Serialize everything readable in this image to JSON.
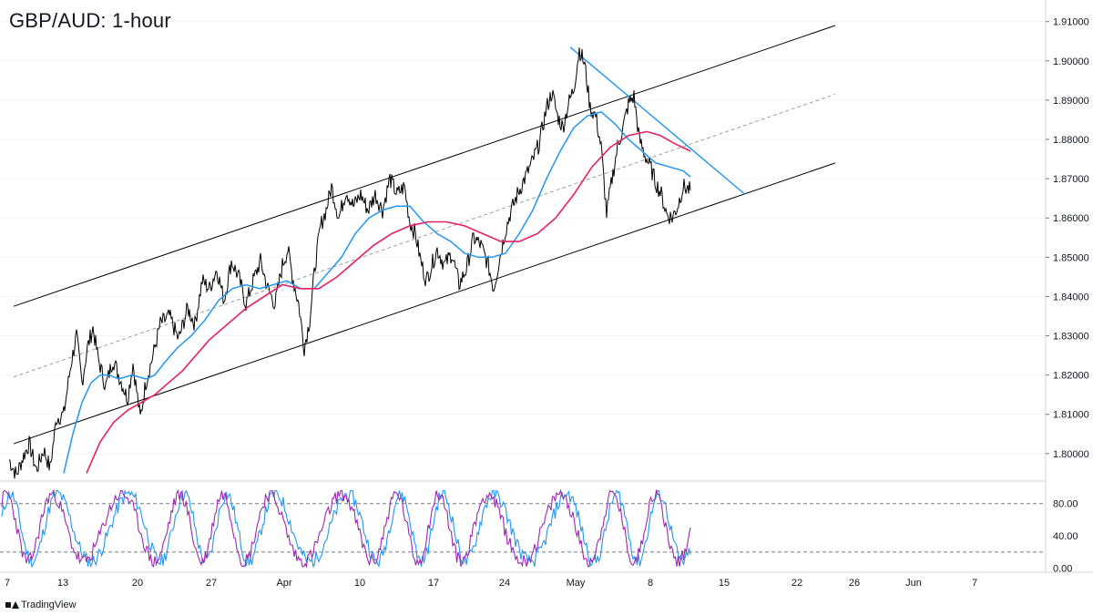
{
  "title": "GBP/AUD: 1-hour",
  "footer": {
    "brand": "TradingView",
    "logo_icon": "tradingview-logo-icon"
  },
  "colors": {
    "price": "#000000",
    "ema_fast": "#2196f3",
    "ema_slow": "#e91e63",
    "channel": "#000000",
    "midline": "#9e9e9e",
    "trendline": "#2196f3",
    "stoch_k": "#2196f3",
    "stoch_d": "#9c27b0",
    "grid": "#e0e3eb"
  },
  "chart_data": [
    {
      "type": "line",
      "title": "GBP/AUD: 1-hour",
      "xlabel": "",
      "ylabel": "",
      "ylim": [
        1.793,
        1.9155
      ],
      "yticks": [
        "1.80000",
        "1.81000",
        "1.82000",
        "1.83000",
        "1.84000",
        "1.85000",
        "1.86000",
        "1.87000",
        "1.88000",
        "1.89000",
        "1.90000",
        "1.91000"
      ],
      "xticks": [
        "7",
        "13",
        "20",
        "27",
        "Apr",
        "10",
        "17",
        "24",
        "May",
        "8",
        "15",
        "22",
        "26",
        "Jun",
        "7"
      ],
      "series": [
        {
          "values": [
            [
              0,
              1.7985
            ],
            [
              8,
              1.7945
            ],
            [
              16,
              1.7995
            ],
            [
              22,
              1.8025
            ],
            [
              30,
              1.7958
            ],
            [
              38,
              1.801
            ],
            [
              45,
              1.7962
            ],
            [
              52,
              1.809
            ],
            [
              60,
              1.81
            ],
            [
              68,
              1.823
            ],
            [
              74,
              1.83
            ],
            [
              80,
              1.818
            ],
            [
              86,
              1.827
            ],
            [
              92,
              1.832
            ],
            [
              98,
              1.824
            ],
            [
              106,
              1.817
            ],
            [
              114,
              1.824
            ],
            [
              122,
              1.819
            ],
            [
              130,
              1.814
            ],
            [
              136,
              1.823
            ],
            [
              144,
              1.809
            ],
            [
              150,
              1.818
            ],
            [
              158,
              1.825
            ],
            [
              166,
              1.833
            ],
            [
              176,
              1.835
            ],
            [
              186,
              1.829
            ],
            [
              196,
              1.837
            ],
            [
              204,
              1.833
            ],
            [
              212,
              1.844
            ],
            [
              220,
              1.842
            ],
            [
              228,
              1.847
            ],
            [
              236,
              1.839
            ],
            [
              244,
              1.849
            ],
            [
              252,
              1.845
            ],
            [
              260,
              1.838
            ],
            [
              268,
              1.844
            ],
            [
              276,
              1.849
            ],
            [
              284,
              1.842
            ],
            [
              292,
              1.838
            ],
            [
              300,
              1.848
            ],
            [
              306,
              1.852
            ],
            [
              312,
              1.844
            ],
            [
              318,
              1.838
            ],
            [
              324,
              1.827
            ],
            [
              330,
              1.834
            ],
            [
              336,
              1.848
            ],
            [
              342,
              1.858
            ],
            [
              348,
              1.862
            ],
            [
              354,
              1.868
            ],
            [
              362,
              1.86
            ],
            [
              370,
              1.867
            ],
            [
              378,
              1.863
            ],
            [
              386,
              1.866
            ],
            [
              394,
              1.862
            ],
            [
              402,
              1.866
            ],
            [
              410,
              1.862
            ],
            [
              418,
              1.87
            ],
            [
              426,
              1.866
            ],
            [
              434,
              1.868
            ],
            [
              440,
              1.859
            ],
            [
              446,
              1.856
            ],
            [
              452,
              1.849
            ],
            [
              458,
              1.844
            ],
            [
              464,
              1.848
            ],
            [
              470,
              1.852
            ],
            [
              478,
              1.848
            ],
            [
              486,
              1.851
            ],
            [
              494,
              1.843
            ],
            [
              502,
              1.847
            ],
            [
              510,
              1.855
            ],
            [
              518,
              1.853
            ],
            [
              526,
              1.848
            ],
            [
              532,
              1.842
            ],
            [
              538,
              1.849
            ],
            [
              544,
              1.856
            ],
            [
              550,
              1.861
            ],
            [
              558,
              1.866
            ],
            [
              566,
              1.87
            ],
            [
              574,
              1.874
            ],
            [
              582,
              1.879
            ],
            [
              590,
              1.888
            ],
            [
              596,
              1.892
            ],
            [
              602,
              1.886
            ],
            [
              608,
              1.883
            ],
            [
              614,
              1.889
            ],
            [
              620,
              1.893
            ],
            [
              626,
              1.903
            ],
            [
              632,
              1.899
            ],
            [
              638,
              1.888
            ],
            [
              644,
              1.886
            ],
            [
              650,
              1.878
            ],
            [
              656,
              1.861
            ],
            [
              662,
              1.87
            ],
            [
              668,
              1.878
            ],
            [
              674,
              1.883
            ],
            [
              680,
              1.889
            ],
            [
              686,
              1.891
            ],
            [
              692,
              1.88
            ],
            [
              698,
              1.876
            ],
            [
              704,
              1.873
            ],
            [
              710,
              1.869
            ],
            [
              716,
              1.866
            ],
            [
              722,
              1.861
            ],
            [
              728,
              1.86
            ],
            [
              734,
              1.863
            ],
            [
              740,
              1.868
            ],
            [
              748,
              1.867
            ]
          ]
        },
        {
          "values": [
            [
              60,
              1.795
            ],
            [
              70,
              1.805
            ],
            [
              80,
              1.813
            ],
            [
              90,
              1.818
            ],
            [
              100,
              1.82
            ],
            [
              110,
              1.82
            ],
            [
              120,
              1.819
            ],
            [
              135,
              1.82
            ],
            [
              150,
              1.819
            ],
            [
              160,
              1.82
            ],
            [
              170,
              1.823
            ],
            [
              185,
              1.827
            ],
            [
              200,
              1.83
            ],
            [
              215,
              1.834
            ],
            [
              230,
              1.839
            ],
            [
              245,
              1.842
            ],
            [
              260,
              1.843
            ],
            [
              275,
              1.842
            ],
            [
              290,
              1.843
            ],
            [
              305,
              1.844
            ],
            [
              320,
              1.842
            ],
            [
              335,
              1.842
            ],
            [
              350,
              1.846
            ],
            [
              365,
              1.85
            ],
            [
              380,
              1.856
            ],
            [
              395,
              1.86
            ],
            [
              410,
              1.862
            ],
            [
              425,
              1.863
            ],
            [
              440,
              1.863
            ],
            [
              455,
              1.859
            ],
            [
              470,
              1.856
            ],
            [
              485,
              1.854
            ],
            [
              500,
              1.851
            ],
            [
              515,
              1.85
            ],
            [
              530,
              1.85
            ],
            [
              545,
              1.851
            ],
            [
              560,
              1.856
            ],
            [
              575,
              1.862
            ],
            [
              590,
              1.87
            ],
            [
              605,
              1.877
            ],
            [
              620,
              1.883
            ],
            [
              635,
              1.886
            ],
            [
              650,
              1.887
            ],
            [
              665,
              1.884
            ],
            [
              680,
              1.88
            ],
            [
              695,
              1.877
            ],
            [
              710,
              1.874
            ],
            [
              725,
              1.873
            ],
            [
              740,
              1.872
            ],
            [
              748,
              1.8705
            ]
          ]
        },
        {
          "values": [
            [
              85,
              1.795
            ],
            [
              100,
              1.803
            ],
            [
              115,
              1.808
            ],
            [
              130,
              1.811
            ],
            [
              145,
              1.813
            ],
            [
              160,
              1.815
            ],
            [
              175,
              1.818
            ],
            [
              190,
              1.821
            ],
            [
              205,
              1.825
            ],
            [
              220,
              1.829
            ],
            [
              240,
              1.833
            ],
            [
              260,
              1.837
            ],
            [
              280,
              1.84
            ],
            [
              300,
              1.843
            ],
            [
              320,
              1.842
            ],
            [
              340,
              1.842
            ],
            [
              360,
              1.845
            ],
            [
              380,
              1.849
            ],
            [
              400,
              1.853
            ],
            [
              420,
              1.856
            ],
            [
              440,
              1.858
            ],
            [
              460,
              1.859
            ],
            [
              480,
              1.859
            ],
            [
              500,
              1.858
            ],
            [
              520,
              1.856
            ],
            [
              540,
              1.854
            ],
            [
              560,
              1.854
            ],
            [
              580,
              1.856
            ],
            [
              600,
              1.86
            ],
            [
              620,
              1.866
            ],
            [
              640,
              1.873
            ],
            [
              660,
              1.878
            ],
            [
              680,
              1.881
            ],
            [
              700,
              1.882
            ],
            [
              715,
              1.881
            ],
            [
              730,
              1.879
            ],
            [
              748,
              1.877
            ]
          ]
        }
      ],
      "channel": {
        "upper": [
          [
            15,
            1.8375
          ],
          [
            917,
            1.909
          ]
        ],
        "middle": [
          [
            15,
            1.8195
          ],
          [
            917,
            1.8915
          ]
        ],
        "lower": [
          [
            15,
            1.8025
          ],
          [
            917,
            1.874
          ]
        ],
        "trendline": [
          [
            626,
            1.9035
          ],
          [
            818,
            1.866
          ]
        ]
      }
    },
    {
      "type": "line",
      "title": "",
      "ylim": [
        -5,
        100
      ],
      "yticks": [
        "80.00",
        "40.00",
        "0.00"
      ],
      "levels": [
        80,
        20
      ],
      "series": [
        {
          "period": 9.5,
          "offset": 0
        },
        {
          "period": 9.5,
          "offset": 0.6
        }
      ]
    }
  ]
}
